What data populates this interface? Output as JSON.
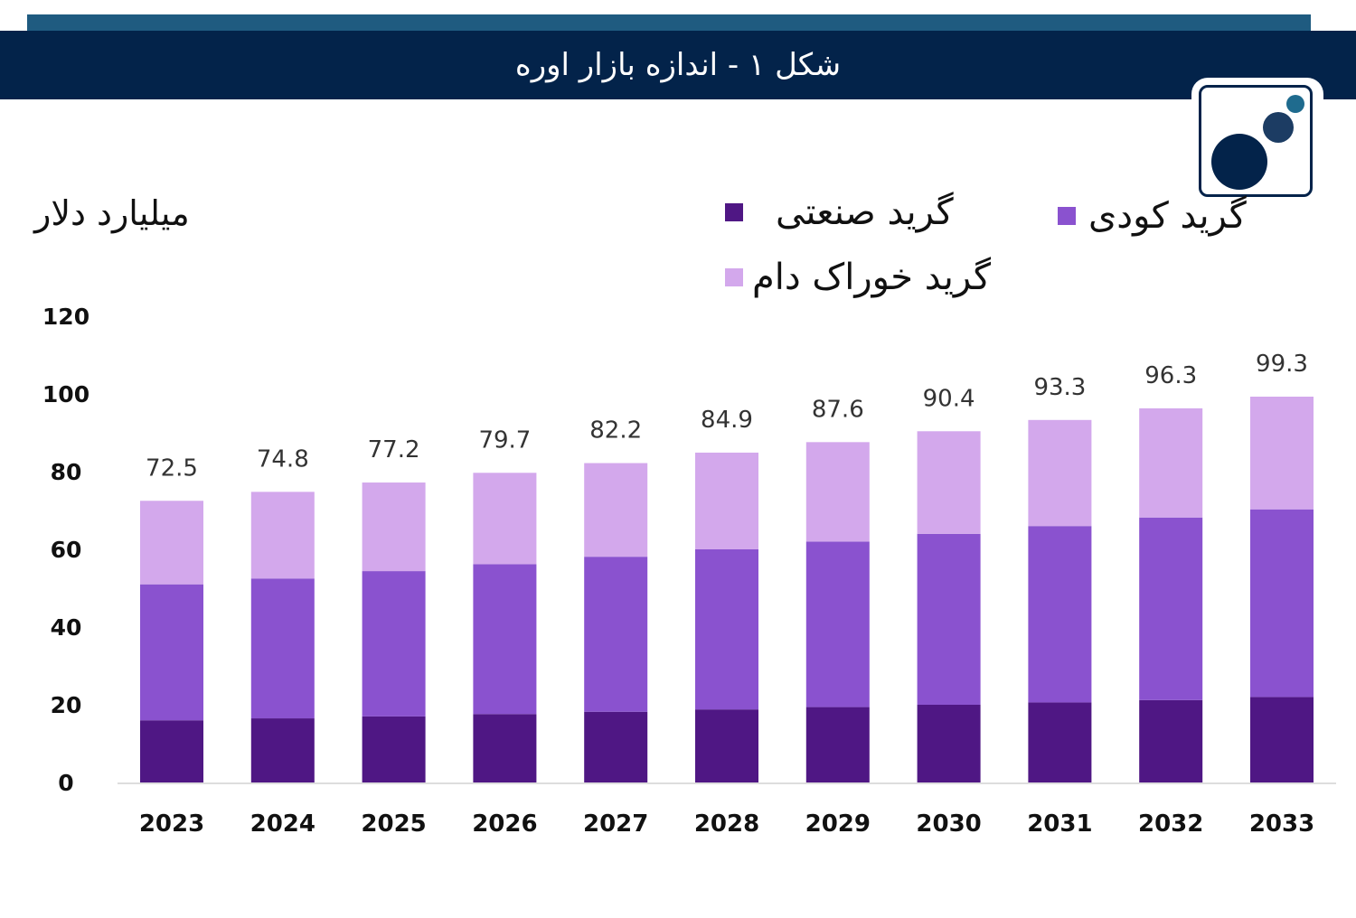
{
  "header": {
    "title": "شکل ۱ - اندازه بازار اوره"
  },
  "colors": {
    "industrial": "#4f1784",
    "fertilizer": "#8a52cf",
    "feed": "#d3a8ec",
    "header_bg": "#03234a",
    "strip": "#1f5b80"
  },
  "chart_data": {
    "type": "bar",
    "stacked": true,
    "unit_label": "میلیارد دلار",
    "categories": [
      "2023",
      "2024",
      "2025",
      "2026",
      "2027",
      "2028",
      "2029",
      "2030",
      "2031",
      "2032",
      "2033"
    ],
    "series": [
      {
        "name": "گرید صنعتی",
        "color": "#4f1784",
        "values": [
          16,
          16.5,
          17,
          17.6,
          18.2,
          18.8,
          19.4,
          20,
          20.6,
          21.2,
          22
        ]
      },
      {
        "name": "گرید کودی",
        "color": "#8a52cf",
        "values": [
          35,
          36,
          37.4,
          38.6,
          39.9,
          41.2,
          42.6,
          44,
          45.4,
          47,
          48.3
        ]
      },
      {
        "name": "گرید خوراک دام",
        "color": "#d3a8ec",
        "values": [
          21.5,
          22.3,
          22.8,
          23.5,
          24.1,
          24.9,
          25.6,
          26.4,
          27.3,
          28.1,
          29
        ]
      }
    ],
    "totals": [
      "72.5",
      "74.8",
      "77.2",
      "79.7",
      "82.2",
      "84.9",
      "87.6",
      "90.4",
      "93.3",
      "96.3",
      "99.3"
    ],
    "y_ticks": [
      "0",
      "20",
      "40",
      "60",
      "80",
      "100",
      "120"
    ],
    "ylim": [
      0,
      120
    ],
    "grid": false,
    "legend_position": "top-right"
  }
}
